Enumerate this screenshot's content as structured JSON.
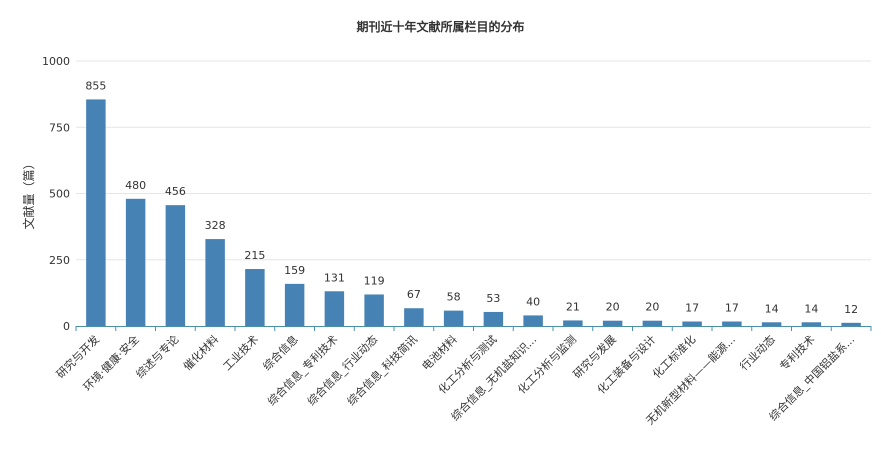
{
  "chart_data": {
    "type": "bar",
    "title": "期刊近十年文献所属栏目的分布",
    "xlabel": "",
    "ylabel": "文献量（篇）",
    "ylim": [
      0,
      1000
    ],
    "yticks": [
      0,
      250,
      500,
      750,
      1000
    ],
    "grid": true,
    "legend": "none",
    "bar_color": "#4682b4",
    "categories": [
      "研究与开发",
      "环境·健康·安全",
      "综述与专论",
      "催化材料",
      "工业技术",
      "综合信息",
      "综合信息_专利技术",
      "综合信息_行业动态",
      "综合信息_科技简讯",
      "电池材料",
      "化工分析与测试",
      "综合信息_无机盐知识...",
      "化工分析与监测",
      "研究与发展",
      "化工装备与设计",
      "化工标准化",
      "无机新型材料——能源...",
      "行业动态",
      "专利技术",
      "综合信息_中国铝盐系..."
    ],
    "values": [
      855,
      480,
      456,
      328,
      215,
      159,
      131,
      119,
      67,
      58,
      53,
      40,
      21,
      20,
      20,
      17,
      17,
      14,
      14,
      12
    ]
  }
}
